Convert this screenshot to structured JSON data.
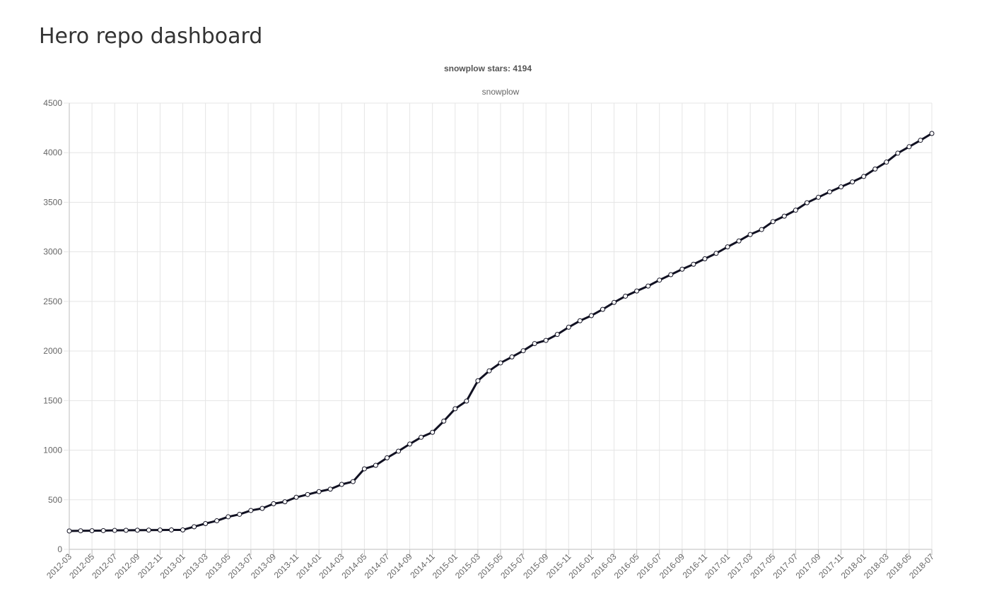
{
  "page": {
    "title": "Hero repo dashboard"
  },
  "chart_data": {
    "type": "line",
    "title": "snowplow stars: 4194",
    "legend": [
      "snowplow"
    ],
    "legend_position": "top-center",
    "grid": true,
    "line_color": "#111122",
    "xlabel": "",
    "ylabel": "",
    "ylim": [
      0,
      4500
    ],
    "yticks": [
      0,
      500,
      1000,
      1500,
      2000,
      2500,
      3000,
      3500,
      4000,
      4500
    ],
    "x": [
      "2012-03",
      "2012-04",
      "2012-05",
      "2012-06",
      "2012-07",
      "2012-08",
      "2012-09",
      "2012-10",
      "2012-11",
      "2012-12",
      "2013-01",
      "2013-02",
      "2013-03",
      "2013-04",
      "2013-05",
      "2013-06",
      "2013-07",
      "2013-08",
      "2013-09",
      "2013-10",
      "2013-11",
      "2013-12",
      "2014-01",
      "2014-02",
      "2014-03",
      "2014-04",
      "2014-05",
      "2014-06",
      "2014-07",
      "2014-08",
      "2014-09",
      "2014-10",
      "2014-11",
      "2014-12",
      "2015-01",
      "2015-02",
      "2015-03",
      "2015-04",
      "2015-05",
      "2015-06",
      "2015-07",
      "2015-08",
      "2015-09",
      "2015-10",
      "2015-11",
      "2015-12",
      "2016-01",
      "2016-02",
      "2016-03",
      "2016-04",
      "2016-05",
      "2016-06",
      "2016-07",
      "2016-08",
      "2016-09",
      "2016-10",
      "2016-11",
      "2016-12",
      "2017-01",
      "2017-02",
      "2017-03",
      "2017-04",
      "2017-05",
      "2017-06",
      "2017-07",
      "2017-08",
      "2017-09",
      "2017-10",
      "2017-11",
      "2017-12",
      "2018-01",
      "2018-02",
      "2018-03",
      "2018-04",
      "2018-05",
      "2018-06",
      "2018-07"
    ],
    "xtick_labels": [
      "2012-03",
      "2012-05",
      "2012-07",
      "2012-09",
      "2012-11",
      "2013-01",
      "2013-03",
      "2013-05",
      "2013-07",
      "2013-09",
      "2013-11",
      "2014-01",
      "2014-03",
      "2014-05",
      "2014-07",
      "2014-09",
      "2014-11",
      "2015-01",
      "2015-03",
      "2015-05",
      "2015-07",
      "2015-09",
      "2015-11",
      "2016-01",
      "2016-03",
      "2016-05",
      "2016-07",
      "2016-09",
      "2016-11",
      "2017-01",
      "2017-03",
      "2017-05",
      "2017-07",
      "2017-09",
      "2017-11",
      "2018-01",
      "2018-03",
      "2018-05",
      "2018-07"
    ],
    "series": [
      {
        "name": "snowplow",
        "values": [
          185,
          187,
          188,
          189,
          191,
          192,
          193,
          194,
          195,
          196,
          196,
          228,
          260,
          288,
          328,
          353,
          392,
          413,
          460,
          480,
          525,
          553,
          582,
          607,
          655,
          683,
          812,
          847,
          923,
          990,
          1062,
          1130,
          1180,
          1293,
          1418,
          1495,
          1700,
          1800,
          1880,
          1940,
          2003,
          2075,
          2107,
          2167,
          2240,
          2305,
          2357,
          2420,
          2490,
          2553,
          2605,
          2655,
          2715,
          2770,
          2825,
          2875,
          2930,
          2985,
          3050,
          3110,
          3175,
          3225,
          3305,
          3360,
          3420,
          3495,
          3550,
          3605,
          3655,
          3705,
          3760,
          3835,
          3905,
          3995,
          4060,
          4125,
          4194
        ]
      }
    ]
  }
}
